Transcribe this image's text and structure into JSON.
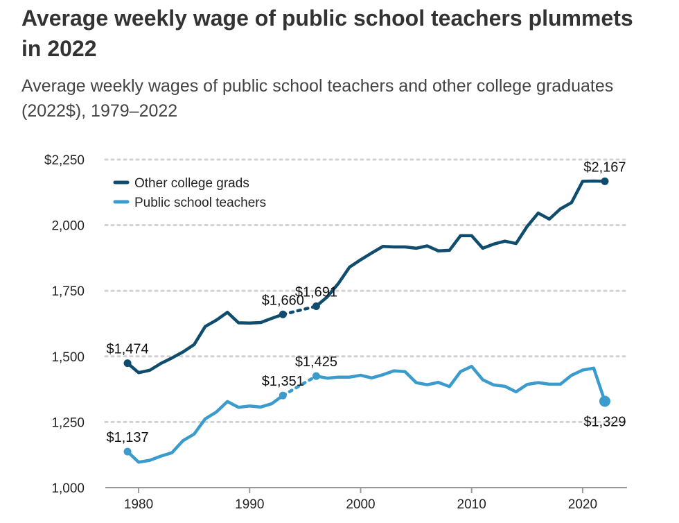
{
  "title": "Average weekly wage of public school teachers plummets in 2022",
  "subtitle": "Average weekly wages of public school teachers and other college graduates (2022$), 1979–2022",
  "chart_data": {
    "type": "line",
    "xlim": [
      1977,
      2024
    ],
    "ylim": [
      1000,
      2250
    ],
    "y_ticks": [
      1000,
      1250,
      1500,
      1750,
      2000,
      2250
    ],
    "y_tick_labels": [
      "1,000",
      "1,250",
      "1,500",
      "1,750",
      "2,000",
      "$2,250"
    ],
    "x_ticks": [
      1980,
      1990,
      2000,
      2010,
      2020
    ],
    "x_tick_labels": [
      "1980",
      "1990",
      "2000",
      "2010",
      "2020"
    ],
    "grid": "horizontal dotted",
    "legend_position": "top-left",
    "gap_years": [
      1994,
      1995
    ],
    "series": [
      {
        "name": "Other college grads",
        "color": "#0f4c6e",
        "x": [
          1979,
          1980,
          1981,
          1982,
          1983,
          1984,
          1985,
          1986,
          1987,
          1988,
          1989,
          1990,
          1991,
          1992,
          1993,
          1996,
          1997,
          1998,
          1999,
          2000,
          2001,
          2002,
          2003,
          2004,
          2005,
          2006,
          2007,
          2008,
          2009,
          2010,
          2011,
          2012,
          2013,
          2014,
          2015,
          2016,
          2017,
          2018,
          2019,
          2020,
          2021,
          2022
        ],
        "y": [
          1474,
          1438,
          1447,
          1473,
          1494,
          1517,
          1545,
          1614,
          1638,
          1668,
          1628,
          1627,
          1629,
          1645,
          1660,
          1691,
          1727,
          1778,
          1840,
          1868,
          1894,
          1919,
          1917,
          1917,
          1912,
          1921,
          1902,
          1904,
          1960,
          1960,
          1912,
          1928,
          1939,
          1930,
          1995,
          2046,
          2023,
          2062,
          2086,
          2167,
          2168,
          2167
        ],
        "labels": [
          {
            "x": 1979,
            "y": 1474,
            "text": "$1,474",
            "pos": "above"
          },
          {
            "x": 1993,
            "y": 1660,
            "text": "$1,660",
            "pos": "above"
          },
          {
            "x": 1996,
            "y": 1691,
            "text": "$1,691",
            "pos": "above"
          },
          {
            "x": 2022,
            "y": 2167,
            "text": "$2,167",
            "pos": "above"
          }
        ]
      },
      {
        "name": "Public school teachers",
        "color": "#3a9bcc",
        "x": [
          1979,
          1980,
          1981,
          1982,
          1983,
          1984,
          1985,
          1986,
          1987,
          1988,
          1989,
          1990,
          1991,
          1992,
          1993,
          1996,
          1997,
          1998,
          1999,
          2000,
          2001,
          2002,
          2003,
          2004,
          2005,
          2006,
          2007,
          2008,
          2009,
          2010,
          2011,
          2012,
          2013,
          2014,
          2015,
          2016,
          2017,
          2018,
          2019,
          2020,
          2021,
          2022
        ],
        "y": [
          1137,
          1097,
          1104,
          1120,
          1133,
          1179,
          1204,
          1262,
          1288,
          1328,
          1306,
          1311,
          1307,
          1320,
          1351,
          1425,
          1417,
          1421,
          1421,
          1428,
          1418,
          1430,
          1445,
          1442,
          1400,
          1392,
          1401,
          1385,
          1442,
          1462,
          1411,
          1391,
          1386,
          1365,
          1393,
          1400,
          1394,
          1394,
          1428,
          1448,
          1455,
          1329
        ],
        "labels": [
          {
            "x": 1979,
            "y": 1137,
            "text": "$1,137",
            "pos": "above"
          },
          {
            "x": 1993,
            "y": 1351,
            "text": "$1,351",
            "pos": "above"
          },
          {
            "x": 1996,
            "y": 1425,
            "text": "$1,425",
            "pos": "above"
          },
          {
            "x": 2022,
            "y": 1329,
            "text": "$1,329",
            "pos": "below"
          }
        ]
      }
    ]
  }
}
